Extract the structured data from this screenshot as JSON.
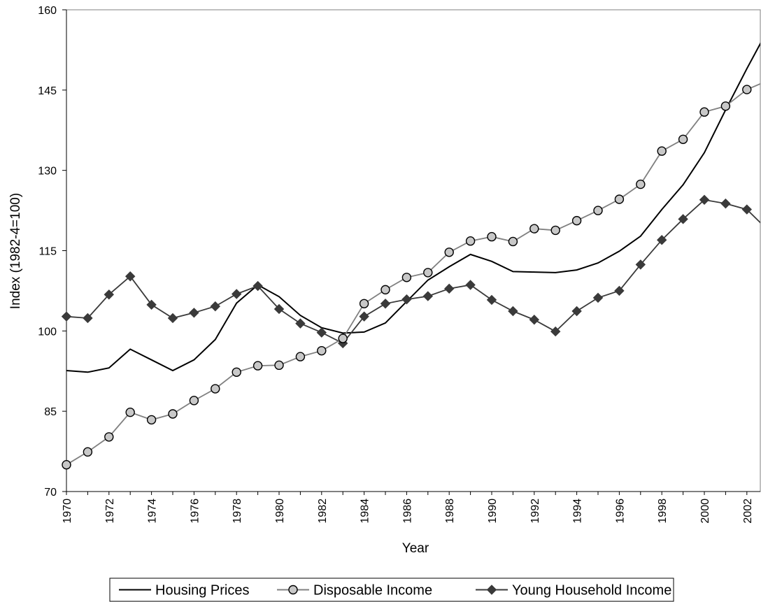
{
  "chart_data": {
    "type": "line",
    "title": "",
    "xlabel": "Year",
    "ylabel": "Index (1982-4=100)",
    "xlim": [
      1970,
      2003
    ],
    "ylim": [
      70,
      160
    ],
    "yticks": [
      70,
      85,
      100,
      115,
      130,
      145,
      160
    ],
    "xticks": [
      1970,
      1972,
      1974,
      1976,
      1978,
      1980,
      1982,
      1984,
      1986,
      1988,
      1990,
      1992,
      1994,
      1996,
      1998,
      2000,
      2002
    ],
    "grid": false,
    "legend_position": "bottom",
    "x": [
      1970,
      1971,
      1972,
      1973,
      1974,
      1975,
      1976,
      1977,
      1978,
      1979,
      1980,
      1981,
      1982,
      1983,
      1984,
      1985,
      1986,
      1987,
      1988,
      1989,
      1990,
      1991,
      1992,
      1993,
      1994,
      1995,
      1996,
      1997,
      1998,
      1999,
      2000,
      2001,
      2002,
      2003
    ],
    "series": [
      {
        "name": "Housing Prices",
        "marker": "none",
        "color": "#000000",
        "values": [
          92.6,
          92.3,
          93.1,
          96.6,
          94.6,
          92.6,
          94.6,
          98.4,
          105.2,
          108.6,
          106.4,
          102.9,
          100.6,
          99.6,
          99.8,
          101.5,
          105.5,
          109.5,
          112.0,
          114.3,
          113.0,
          111.1,
          111.0,
          110.9,
          111.4,
          112.7,
          114.9,
          117.7,
          122.7,
          127.3,
          133.3,
          141.3,
          149.0,
          156.4
        ]
      },
      {
        "name": "Disposable Income",
        "marker": "circle",
        "color": "#808080",
        "values": [
          75.0,
          77.4,
          80.2,
          84.8,
          83.4,
          84.5,
          87.0,
          89.2,
          92.3,
          93.5,
          93.6,
          95.2,
          96.3,
          98.6,
          105.1,
          107.7,
          110.0,
          110.9,
          114.7,
          116.8,
          117.6,
          116.7,
          119.1,
          118.8,
          120.6,
          122.5,
          124.6,
          127.4,
          133.6,
          135.8,
          140.9,
          142.0,
          145.1,
          146.8
        ]
      },
      {
        "name": "Young Household Income",
        "marker": "diamond",
        "color": "#3a3a3a",
        "values": [
          102.7,
          102.4,
          106.8,
          110.2,
          104.9,
          102.4,
          103.4,
          104.6,
          106.9,
          108.4,
          104.1,
          101.4,
          99.7,
          97.7,
          102.7,
          105.1,
          105.9,
          106.5,
          107.9,
          108.6,
          105.8,
          103.7,
          102.1,
          99.9,
          103.7,
          106.2,
          107.5,
          112.4,
          117.0,
          120.9,
          124.5,
          123.8,
          122.7,
          118.8
        ]
      }
    ]
  }
}
